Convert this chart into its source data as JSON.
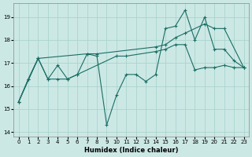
{
  "xlabel": "Humidex (Indice chaleur)",
  "background_color": "#cce8e5",
  "grid_color": "#aad4cf",
  "line_color": "#1a6e64",
  "xlim": [
    -0.5,
    23.5
  ],
  "ylim": [
    13.8,
    19.6
  ],
  "yticks": [
    14,
    15,
    16,
    17,
    18,
    19
  ],
  "xticks": [
    0,
    1,
    2,
    3,
    4,
    5,
    6,
    7,
    8,
    9,
    10,
    11,
    12,
    13,
    14,
    15,
    16,
    17,
    18,
    19,
    20,
    21,
    22,
    23
  ],
  "line1_x": [
    0,
    1,
    2,
    3,
    4,
    5,
    6,
    7,
    8,
    9,
    10,
    11,
    12,
    13,
    14,
    15,
    16,
    17,
    18,
    19,
    20,
    21,
    22,
    23
  ],
  "line1_y": [
    15.3,
    16.3,
    17.2,
    16.3,
    16.9,
    16.3,
    16.5,
    17.4,
    17.3,
    14.3,
    15.6,
    16.5,
    16.5,
    16.2,
    16.5,
    18.5,
    18.6,
    19.3,
    18.0,
    19.0,
    17.6,
    17.6,
    17.1,
    16.8
  ],
  "line2_x": [
    0,
    2,
    7,
    8,
    14,
    15,
    16,
    17,
    19,
    20,
    21,
    23
  ],
  "line2_y": [
    15.3,
    17.2,
    17.4,
    17.4,
    17.7,
    17.8,
    18.1,
    18.3,
    18.7,
    18.5,
    18.5,
    16.8
  ],
  "line3_x": [
    0,
    1,
    2,
    3,
    4,
    5,
    6,
    10,
    11,
    14,
    15,
    16,
    17,
    18,
    19,
    20,
    21,
    22,
    23
  ],
  "line3_y": [
    15.3,
    16.3,
    17.2,
    16.3,
    16.3,
    16.3,
    16.5,
    17.3,
    17.3,
    17.5,
    17.6,
    17.8,
    17.8,
    16.7,
    16.8,
    16.8,
    16.9,
    16.8,
    16.8
  ]
}
